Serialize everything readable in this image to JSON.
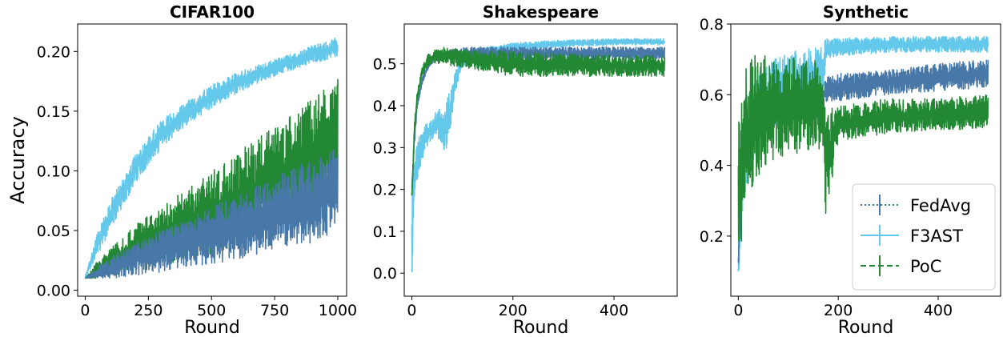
{
  "colors": {
    "FedAvg": "#4878a8",
    "F3AST": "#64c8eb",
    "PoC": "#228833"
  },
  "legend": {
    "placement": "lower-right",
    "entries": [
      {
        "label": "FedAvg",
        "style": "dotted",
        "color": "#4878a8"
      },
      {
        "label": "F3AST",
        "style": "solid",
        "color": "#64c8eb"
      },
      {
        "label": "PoC",
        "style": "dashed",
        "color": "#228833"
      }
    ]
  },
  "chart_data": [
    {
      "type": "line",
      "title": "CIFAR100",
      "xlabel": "Round",
      "ylabel": "Accuracy",
      "xlim": [
        -30,
        1035
      ],
      "ylim": [
        -0.005,
        0.223
      ],
      "xticks": [
        0,
        250,
        500,
        750,
        1000
      ],
      "xtick_labels": [
        "0",
        "250",
        "500",
        "750",
        "1000"
      ],
      "yticks": [
        0.0,
        0.05,
        0.1,
        0.15,
        0.2
      ],
      "ytick_labels": [
        "0.00",
        "0.05",
        "0.10",
        "0.15",
        "0.20"
      ],
      "grid": false,
      "series": [
        {
          "name": "F3AST",
          "x": [
            0,
            50,
            100,
            150,
            200,
            250,
            300,
            400,
            500,
            600,
            700,
            800,
            900,
            1000
          ],
          "lower": [
            0.01,
            0.03,
            0.05,
            0.07,
            0.09,
            0.105,
            0.118,
            0.138,
            0.152,
            0.165,
            0.175,
            0.183,
            0.19,
            0.195
          ],
          "upper": [
            0.012,
            0.05,
            0.075,
            0.095,
            0.115,
            0.13,
            0.142,
            0.158,
            0.172,
            0.182,
            0.19,
            0.197,
            0.205,
            0.212
          ]
        },
        {
          "name": "PoC",
          "x": [
            0,
            50,
            100,
            200,
            300,
            400,
            500,
            600,
            700,
            800,
            900,
            1000
          ],
          "lower": [
            0.01,
            0.01,
            0.012,
            0.015,
            0.02,
            0.025,
            0.03,
            0.038,
            0.045,
            0.055,
            0.065,
            0.08
          ],
          "upper": [
            0.01,
            0.025,
            0.035,
            0.055,
            0.07,
            0.085,
            0.1,
            0.115,
            0.13,
            0.145,
            0.16,
            0.178
          ]
        },
        {
          "name": "FedAvg",
          "x": [
            0,
            50,
            100,
            200,
            300,
            400,
            500,
            600,
            700,
            800,
            900,
            1000
          ],
          "lower": [
            0.01,
            0.01,
            0.01,
            0.012,
            0.015,
            0.02,
            0.022,
            0.026,
            0.03,
            0.035,
            0.04,
            0.05
          ],
          "upper": [
            0.01,
            0.02,
            0.028,
            0.04,
            0.05,
            0.06,
            0.07,
            0.08,
            0.09,
            0.1,
            0.11,
            0.12
          ]
        }
      ]
    },
    {
      "type": "line",
      "title": "Shakespeare",
      "xlabel": "Round",
      "ylabel": "",
      "xlim": [
        -15,
        525
      ],
      "ylim": [
        -0.055,
        0.595
      ],
      "xticks": [
        0,
        200,
        400
      ],
      "xtick_labels": [
        "0",
        "200",
        "400"
      ],
      "yticks": [
        0.0,
        0.1,
        0.2,
        0.3,
        0.4,
        0.5
      ],
      "ytick_labels": [
        "0.0",
        "0.1",
        "0.2",
        "0.3",
        "0.4",
        "0.5"
      ],
      "grid": false,
      "series": [
        {
          "name": "F3AST",
          "x": [
            0,
            5,
            10,
            20,
            30,
            40,
            50,
            60,
            70,
            80,
            90,
            100,
            120,
            150,
            200,
            300,
            400,
            500
          ],
          "lower": [
            -0.02,
            0.15,
            0.22,
            0.27,
            0.3,
            0.32,
            0.33,
            0.3,
            0.28,
            0.38,
            0.45,
            0.49,
            0.51,
            0.52,
            0.53,
            0.54,
            0.545,
            0.545
          ],
          "upper": [
            0.22,
            0.28,
            0.32,
            0.35,
            0.36,
            0.37,
            0.39,
            0.4,
            0.42,
            0.46,
            0.5,
            0.52,
            0.535,
            0.54,
            0.55,
            0.557,
            0.56,
            0.56
          ]
        },
        {
          "name": "FedAvg",
          "x": [
            0,
            5,
            10,
            20,
            30,
            40,
            60,
            100,
            200,
            300,
            400,
            500
          ],
          "lower": [
            0.17,
            0.3,
            0.38,
            0.45,
            0.48,
            0.5,
            0.51,
            0.51,
            0.51,
            0.51,
            0.51,
            0.51
          ],
          "upper": [
            0.2,
            0.34,
            0.41,
            0.47,
            0.5,
            0.52,
            0.53,
            0.54,
            0.54,
            0.54,
            0.54,
            0.54
          ]
        },
        {
          "name": "PoC",
          "x": [
            0,
            5,
            10,
            20,
            30,
            40,
            60,
            100,
            200,
            300,
            400,
            500
          ],
          "lower": [
            0.17,
            0.32,
            0.4,
            0.47,
            0.49,
            0.5,
            0.5,
            0.49,
            0.47,
            0.47,
            0.47,
            0.47
          ],
          "upper": [
            0.2,
            0.36,
            0.43,
            0.49,
            0.52,
            0.53,
            0.54,
            0.535,
            0.53,
            0.525,
            0.52,
            0.52
          ]
        }
      ]
    },
    {
      "type": "line",
      "title": "Synthetic",
      "xlabel": "Round",
      "ylabel": "",
      "xlim": [
        -15,
        525
      ],
      "ylim": [
        0.03,
        0.8
      ],
      "xticks": [
        0,
        200,
        400
      ],
      "xtick_labels": [
        "0",
        "200",
        "400"
      ],
      "yticks": [
        0.2,
        0.4,
        0.6,
        0.8
      ],
      "ytick_labels": [
        "0.2",
        "0.4",
        "0.6",
        "0.8"
      ],
      "grid": false,
      "series": [
        {
          "name": "F3AST",
          "x": [
            0,
            5,
            10,
            20,
            40,
            60,
            80,
            100,
            120,
            150,
            170,
            175,
            200,
            300,
            400,
            500
          ],
          "lower": [
            0.05,
            0.2,
            0.3,
            0.35,
            0.42,
            0.46,
            0.5,
            0.54,
            0.56,
            0.58,
            0.6,
            0.7,
            0.71,
            0.72,
            0.72,
            0.72
          ],
          "upper": [
            0.15,
            0.45,
            0.55,
            0.62,
            0.66,
            0.69,
            0.71,
            0.72,
            0.73,
            0.73,
            0.74,
            0.76,
            0.76,
            0.765,
            0.765,
            0.765
          ]
        },
        {
          "name": "FedAvg",
          "x": [
            0,
            5,
            10,
            40,
            80,
            120,
            170,
            175,
            200,
            300,
            400,
            500
          ],
          "lower": [
            0.1,
            0.3,
            0.4,
            0.48,
            0.52,
            0.55,
            0.57,
            0.58,
            0.58,
            0.6,
            0.61,
            0.62
          ],
          "upper": [
            0.15,
            0.45,
            0.5,
            0.55,
            0.58,
            0.6,
            0.62,
            0.65,
            0.66,
            0.67,
            0.69,
            0.7
          ]
        },
        {
          "name": "PoC",
          "x": [
            0,
            5,
            10,
            20,
            40,
            60,
            100,
            150,
            170,
            175,
            200,
            300,
            400,
            500
          ],
          "lower": [
            0.1,
            0.12,
            0.22,
            0.3,
            0.37,
            0.4,
            0.43,
            0.44,
            0.45,
            0.25,
            0.47,
            0.49,
            0.5,
            0.5
          ],
          "upper": [
            0.5,
            0.65,
            0.68,
            0.7,
            0.72,
            0.72,
            0.71,
            0.7,
            0.68,
            0.56,
            0.57,
            0.59,
            0.59,
            0.6
          ]
        }
      ]
    }
  ]
}
